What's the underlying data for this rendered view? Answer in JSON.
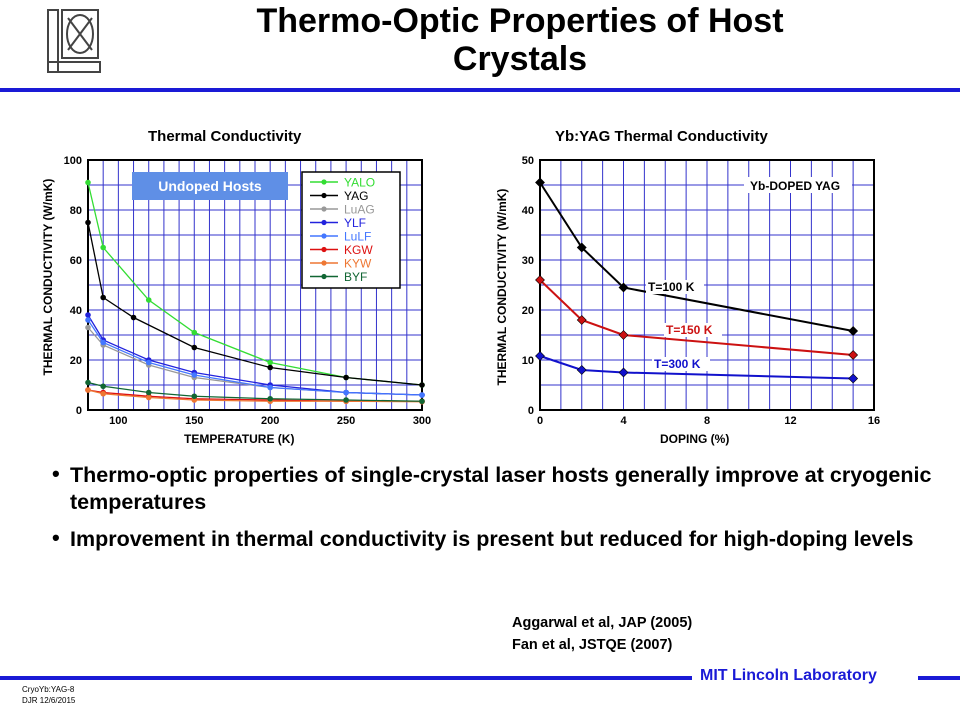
{
  "slide": {
    "title_line1": "Thermo-Optic Properties of Host",
    "title_line2": "Crystals",
    "bullets": [
      "Thermo-optic properties of single-crystal laser hosts generally improve at cryogenic temperatures",
      "Improvement in thermal conductivity is present but reduced for high-doping levels"
    ],
    "references": [
      "Aggarwal et al, JAP (2005)",
      "Fan et al, JSTQE (2007)"
    ],
    "footer_lab": "MIT Lincoln Laboratory",
    "footer_meta": [
      "CryoYb:YAG-8",
      "DJR 12/6/2015"
    ]
  },
  "colors": {
    "accent": "#1a1ad6",
    "grid": "#3333cc"
  },
  "chart_data": [
    {
      "type": "line",
      "title": "Thermal Conductivity",
      "xlabel": "TEMPERATURE (K)",
      "ylabel": "THERMAL CONDUCTIVITY (W/mK)",
      "xlim": [
        80,
        300
      ],
      "ylim": [
        0,
        100
      ],
      "xticks": [
        100,
        150,
        200,
        250,
        300
      ],
      "yticks": [
        0,
        20,
        40,
        60,
        80,
        100
      ],
      "grid": true,
      "annotation": "Undoped Hosts",
      "legend_position": "top-right",
      "series": [
        {
          "name": "YALO",
          "color": "#33dd33",
          "x": [
            80,
            90,
            120,
            150,
            200,
            250,
            300
          ],
          "y": [
            91,
            65,
            44,
            31,
            19,
            13,
            10
          ]
        },
        {
          "name": "YAG",
          "color": "#000000",
          "x": [
            80,
            90,
            110,
            150,
            200,
            250,
            300
          ],
          "y": [
            75,
            45,
            37,
            25,
            17,
            13,
            10
          ]
        },
        {
          "name": "LuAG",
          "color": "#999999",
          "x": [
            80,
            90,
            120,
            150,
            200,
            250,
            300
          ],
          "y": [
            33,
            26,
            18,
            13,
            9,
            7,
            6
          ]
        },
        {
          "name": "YLF",
          "color": "#2222dd",
          "x": [
            80,
            90,
            120,
            150,
            200,
            250,
            300
          ],
          "y": [
            38,
            28,
            20,
            15,
            10,
            7,
            6
          ]
        },
        {
          "name": "LuLF",
          "color": "#4477ff",
          "x": [
            80,
            90,
            120,
            150,
            200,
            250,
            300
          ],
          "y": [
            36,
            27,
            19,
            14,
            9,
            7,
            6
          ]
        },
        {
          "name": "KGW",
          "color": "#dd1111",
          "x": [
            80,
            90,
            120,
            150,
            200,
            250,
            300
          ],
          "y": [
            8,
            7,
            5.5,
            4.5,
            4,
            3.5,
            3.5
          ]
        },
        {
          "name": "KYW",
          "color": "#ee7733",
          "x": [
            80,
            90,
            120,
            150,
            200,
            250,
            300
          ],
          "y": [
            8,
            6.5,
            5,
            4,
            3.5,
            3.5,
            3.3
          ]
        },
        {
          "name": "BYF",
          "color": "#116633",
          "x": [
            80,
            90,
            120,
            150,
            200,
            250,
            300
          ],
          "y": [
            11,
            9.5,
            7,
            5.5,
            4.5,
            4,
            3.5
          ]
        }
      ]
    },
    {
      "type": "line",
      "title": "Yb:YAG Thermal Conductivity",
      "xlabel": "DOPING (%)",
      "ylabel": "THERMAL CONDUCTIVITY (W/mK)",
      "xlim": [
        0,
        16
      ],
      "ylim": [
        0,
        50
      ],
      "xticks": [
        0,
        4,
        8,
        12,
        16
      ],
      "yticks": [
        0,
        10,
        20,
        30,
        40,
        50
      ],
      "grid": true,
      "annotation": "Yb-DOPED YAG",
      "series": [
        {
          "name": "T=100 K",
          "color": "#000000",
          "x": [
            0,
            2,
            4,
            15
          ],
          "y": [
            45.5,
            32.5,
            24.5,
            15.8
          ]
        },
        {
          "name": "T=150 K",
          "color": "#cc1111",
          "x": [
            0,
            2,
            4,
            15
          ],
          "y": [
            26,
            18,
            15,
            11
          ]
        },
        {
          "name": "T=300 K",
          "color": "#1111cc",
          "x": [
            0,
            2,
            4,
            15
          ],
          "y": [
            10.8,
            8,
            7.5,
            6.3
          ]
        }
      ]
    }
  ]
}
